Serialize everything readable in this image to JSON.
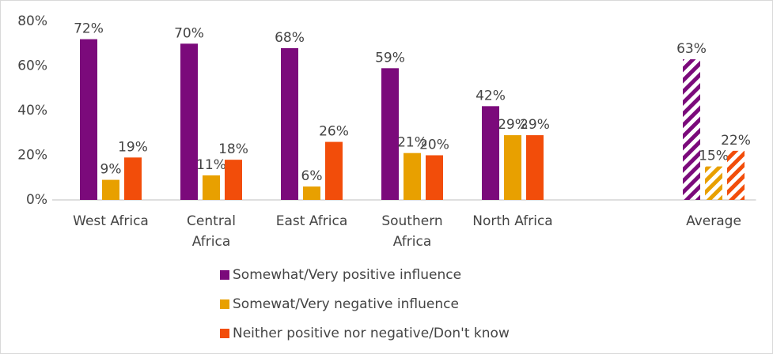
{
  "chart_data": {
    "type": "bar",
    "categories": [
      "West Africa",
      "Central Africa",
      "East Africa",
      "Southern Africa",
      "North Africa",
      null,
      "Average"
    ],
    "series": [
      {
        "name": "Somewhat/Very positive influence",
        "color": "#7b0a7b",
        "values": [
          72,
          70,
          68,
          59,
          42,
          null,
          63
        ],
        "value_labels": [
          "72%",
          "70%",
          "68%",
          "59%",
          "42%",
          null,
          "63%"
        ]
      },
      {
        "name": "Somewat/Very negative influence",
        "color": "#e8a000",
        "values": [
          9,
          11,
          6,
          21,
          29,
          null,
          15
        ],
        "value_labels": [
          "9%",
          "11%",
          "6%",
          "21%",
          "29%",
          null,
          "15%"
        ]
      },
      {
        "name": "Neither positive nor negative/Don't know",
        "color": "#f24d0a",
        "values": [
          19,
          18,
          26,
          20,
          29,
          null,
          22
        ],
        "value_labels": [
          "19%",
          "18%",
          "26%",
          "20%",
          "29%",
          null,
          "22%"
        ]
      }
    ],
    "ylim": [
      0,
      80
    ],
    "yticks": [
      {
        "value": 0,
        "label": "0%"
      },
      {
        "value": 20,
        "label": "20%"
      },
      {
        "value": 40,
        "label": "40%"
      },
      {
        "value": 60,
        "label": "60%"
      },
      {
        "value": 80,
        "label": "80%"
      }
    ],
    "grid": false,
    "legend": "bottom",
    "hatched_category_index": 6
  }
}
